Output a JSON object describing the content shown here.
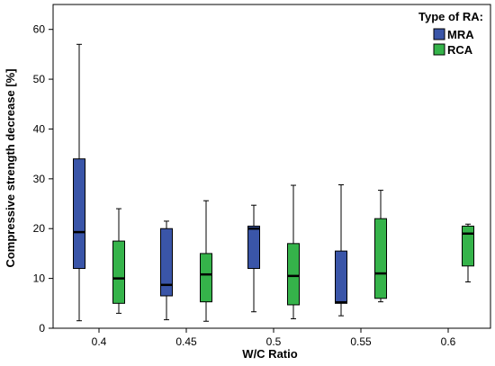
{
  "chart_data": {
    "type": "boxplot",
    "xlabel": "W/C Ratio",
    "ylabel": "Compressive strength decrease [%]",
    "ylim": [
      0,
      65
    ],
    "yticks": [
      0,
      10,
      20,
      30,
      40,
      50,
      60
    ],
    "categories": [
      "0.4",
      "0.45",
      "0.5",
      "0.55",
      "0.6"
    ],
    "grid": false,
    "legend": {
      "title": "Type of RA:",
      "position": "top-right",
      "entries": [
        "MRA",
        "RCA"
      ]
    },
    "series": [
      {
        "name": "MRA",
        "color": "#3a55a8",
        "boxes": [
          {
            "category": "0.4",
            "min": 1.5,
            "q1": 12.0,
            "median": 19.3,
            "q3": 34.0,
            "max": 57.0
          },
          {
            "category": "0.45",
            "min": 1.7,
            "q1": 6.5,
            "median": 8.7,
            "q3": 20.0,
            "max": 21.5
          },
          {
            "category": "0.5",
            "min": 3.3,
            "q1": 12.0,
            "median": 20.0,
            "q3": 20.5,
            "max": 24.7
          },
          {
            "category": "0.55",
            "min": 2.5,
            "q1": 5.0,
            "median": 5.2,
            "q3": 15.5,
            "max": 28.8
          }
        ]
      },
      {
        "name": "RCA",
        "color": "#35b34a",
        "boxes": [
          {
            "category": "0.4",
            "min": 3.0,
            "q1": 5.0,
            "median": 10.0,
            "q3": 17.5,
            "max": 24.0
          },
          {
            "category": "0.45",
            "min": 1.4,
            "q1": 5.3,
            "median": 10.8,
            "q3": 15.0,
            "max": 25.6
          },
          {
            "category": "0.5",
            "min": 1.9,
            "q1": 4.7,
            "median": 10.5,
            "q3": 17.0,
            "max": 28.7
          },
          {
            "category": "0.55",
            "min": 5.3,
            "q1": 6.0,
            "median": 11.0,
            "q3": 22.0,
            "max": 27.7
          },
          {
            "category": "0.6",
            "min": 9.3,
            "q1": 12.5,
            "median": 19.0,
            "q3": 20.5,
            "max": 20.9
          }
        ]
      }
    ]
  }
}
